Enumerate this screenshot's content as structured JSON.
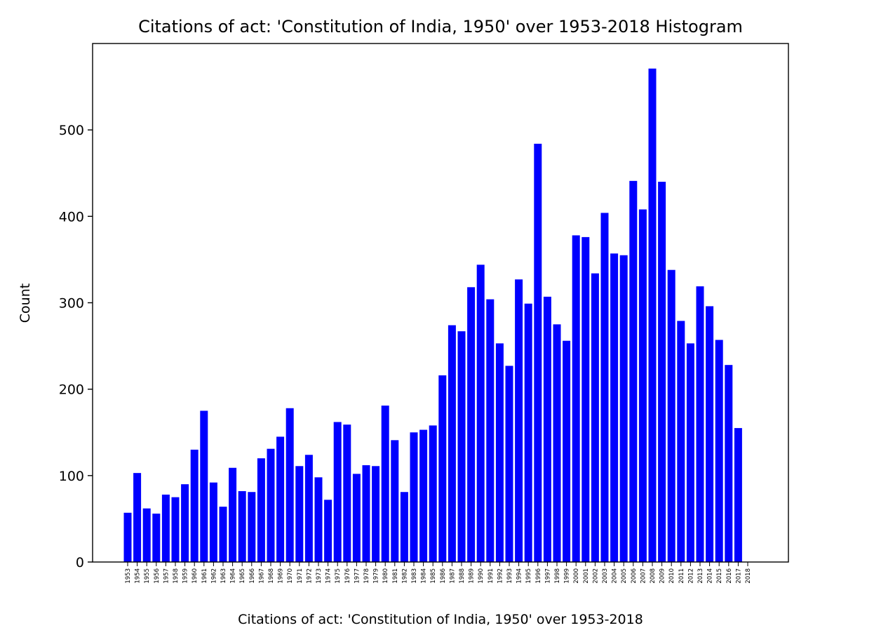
{
  "chart_data": {
    "type": "bar",
    "title": "Citations of act: 'Constitution of India, 1950' over 1953-2018 Histogram",
    "xlabel": "Citations of act: 'Constitution of India, 1950' over 1953-2018",
    "ylabel": "Count",
    "ylim": [
      0,
      600
    ],
    "yticks": [
      0,
      100,
      200,
      300,
      400,
      500
    ],
    "bar_color": "#0000ff",
    "grid": false,
    "legend": "none",
    "categories": [
      "1953",
      "1954",
      "1955",
      "1956",
      "1957",
      "1958",
      "1959",
      "1960",
      "1961",
      "1962",
      "1963",
      "1964",
      "1965",
      "1966",
      "1967",
      "1968",
      "1969",
      "1970",
      "1971",
      "1972",
      "1973",
      "1974",
      "1975",
      "1976",
      "1977",
      "1978",
      "1979",
      "1980",
      "1981",
      "1982",
      "1983",
      "1984",
      "1985",
      "1986",
      "1987",
      "1988",
      "1989",
      "1990",
      "1991",
      "1992",
      "1993",
      "1994",
      "1995",
      "1996",
      "1997",
      "1998",
      "1999",
      "2000",
      "2001",
      "2002",
      "2003",
      "2004",
      "2005",
      "2006",
      "2007",
      "2008",
      "2009",
      "2010",
      "2011",
      "2012",
      "2013",
      "2014",
      "2015",
      "2016",
      "2017",
      "2018"
    ],
    "values": [
      57,
      103,
      62,
      56,
      78,
      75,
      90,
      130,
      175,
      92,
      64,
      109,
      82,
      81,
      120,
      131,
      145,
      178,
      111,
      124,
      98,
      72,
      162,
      159,
      102,
      112,
      111,
      181,
      141,
      81,
      150,
      153,
      158,
      216,
      274,
      267,
      318,
      344,
      304,
      253,
      227,
      327,
      299,
      484,
      307,
      275,
      256,
      378,
      376,
      334,
      404,
      357,
      355,
      441,
      408,
      571,
      440,
      338,
      279,
      253,
      319,
      296,
      257,
      228,
      155,
      0
    ]
  }
}
